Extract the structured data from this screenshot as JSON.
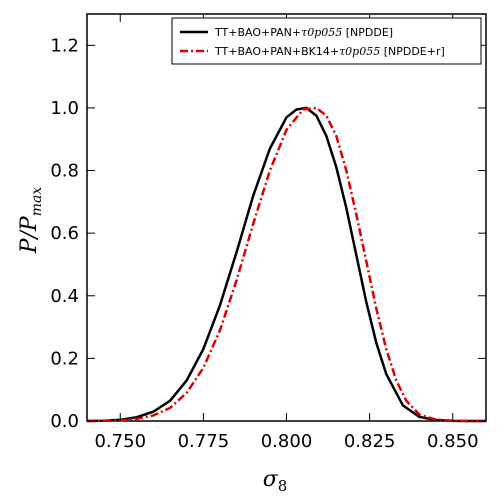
{
  "chart_data": {
    "type": "line",
    "title": "",
    "xlabel_main": "σ",
    "xlabel_sub": "8",
    "ylabel_main": "P/P",
    "ylabel_sub": "max",
    "xlim": [
      0.74,
      0.86
    ],
    "ylim": [
      0.0,
      1.3
    ],
    "xticks": [
      0.75,
      0.775,
      0.8,
      0.825,
      0.85
    ],
    "xtick_labels": [
      "0.750",
      "0.775",
      "0.800",
      "0.825",
      "0.850"
    ],
    "yticks": [
      0.0,
      0.2,
      0.4,
      0.6,
      0.8,
      1.0,
      1.2
    ],
    "ytick_labels": [
      "0.0",
      "0.2",
      "0.4",
      "0.6",
      "0.8",
      "1.0",
      "1.2"
    ],
    "grid": false,
    "legend_position": "top-right",
    "series": [
      {
        "name_plain": "TT+BAO+PAN+",
        "name_italic": "τ0p055",
        "name_suffix": " [NPDDE]",
        "color": "#000000",
        "style": "solid",
        "x": [
          0.74,
          0.745,
          0.75,
          0.755,
          0.76,
          0.765,
          0.77,
          0.775,
          0.78,
          0.785,
          0.79,
          0.795,
          0.8,
          0.803,
          0.806,
          0.809,
          0.812,
          0.815,
          0.818,
          0.821,
          0.824,
          0.827,
          0.83,
          0.835,
          0.84,
          0.845,
          0.85,
          0.855,
          0.86
        ],
        "y": [
          0.0,
          0.001,
          0.004,
          0.012,
          0.03,
          0.065,
          0.13,
          0.23,
          0.37,
          0.54,
          0.72,
          0.87,
          0.97,
          0.995,
          1.0,
          0.975,
          0.91,
          0.81,
          0.68,
          0.53,
          0.38,
          0.25,
          0.15,
          0.05,
          0.013,
          0.003,
          0.0005,
          0.0,
          0.0
        ]
      },
      {
        "name_plain": "TT+BAO+PAN+BK14+",
        "name_italic": "τ0p055",
        "name_suffix": " [NPDDE+r]",
        "color": "#dd0000",
        "style": "dashdot",
        "x": [
          0.74,
          0.745,
          0.75,
          0.755,
          0.76,
          0.765,
          0.77,
          0.775,
          0.78,
          0.785,
          0.79,
          0.795,
          0.8,
          0.805,
          0.809,
          0.812,
          0.815,
          0.818,
          0.821,
          0.824,
          0.827,
          0.83,
          0.833,
          0.836,
          0.84,
          0.845,
          0.85,
          0.855,
          0.86
        ],
        "y": [
          0.0,
          0.0005,
          0.002,
          0.007,
          0.018,
          0.042,
          0.09,
          0.17,
          0.29,
          0.45,
          0.63,
          0.8,
          0.93,
          0.995,
          1.0,
          0.975,
          0.91,
          0.8,
          0.66,
          0.51,
          0.36,
          0.23,
          0.13,
          0.065,
          0.02,
          0.004,
          0.001,
          0.0,
          0.0
        ]
      }
    ]
  }
}
